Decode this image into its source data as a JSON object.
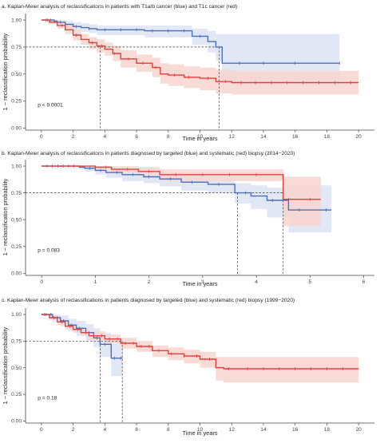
{
  "colors": {
    "blue": "#4a6fb7",
    "red": "#e0403d",
    "blue_band": "#dde3f3",
    "red_band": "#f8d5cf",
    "axis": "#444444",
    "ref_line": "#333333"
  },
  "chart_data": [
    {
      "type": "line",
      "subtype": "kaplan-meier",
      "title": "a. Kaplan-Meier analysis of reclassifications in patients with T1a/b cancer (blue) and T1c cancer (red)",
      "xlabel": "Time in years",
      "ylabel": "1 − reclassification probability",
      "xlim": [
        -1,
        21
      ],
      "ylim": [
        -0.02,
        1.06
      ],
      "xticks": [
        0,
        2,
        4,
        6,
        8,
        10,
        12,
        14,
        16,
        18,
        20
      ],
      "yticks": [
        "0.00",
        "0.25",
        "0.50",
        "0.75",
        "1.00"
      ],
      "pvalue_text": "p < 0.0001",
      "median_ref": {
        "y": 0.75,
        "x": [
          3.7,
          11.2
        ]
      },
      "series": [
        {
          "color": "blue",
          "step_x": [
            0,
            0.8,
            1.0,
            1.5,
            2.0,
            2.5,
            3.0,
            3.5,
            6.5,
            9.5,
            10.5,
            11.0,
            11.4,
            18.8
          ],
          "step_y": [
            1.0,
            0.99,
            0.98,
            0.96,
            0.94,
            0.93,
            0.92,
            0.91,
            0.9,
            0.85,
            0.8,
            0.75,
            0.6,
            0.6
          ],
          "band_upper": [
            1.0,
            1.0,
            1.0,
            0.99,
            0.98,
            0.97,
            0.96,
            0.95,
            0.95,
            0.92,
            0.9,
            0.87,
            0.87,
            0.87
          ],
          "band_lower": [
            1.0,
            0.97,
            0.95,
            0.92,
            0.9,
            0.89,
            0.88,
            0.86,
            0.84,
            0.77,
            0.7,
            0.62,
            0.41,
            0.41
          ],
          "censor_x": [
            0.3,
            0.6,
            1.2,
            2.2,
            3.0,
            4.0,
            5.0,
            6.0,
            7.0,
            8.0,
            9.0,
            10.0,
            12.5,
            14.0,
            16.0,
            18.8
          ]
        },
        {
          "color": "red",
          "step_x": [
            0,
            0.5,
            1.0,
            1.5,
            2.0,
            2.5,
            3.0,
            3.5,
            4.0,
            4.5,
            5.0,
            6.0,
            7.0,
            7.5,
            8.0,
            9.0,
            10.0,
            11.0,
            12.0,
            20.0
          ],
          "step_y": [
            1.0,
            0.98,
            0.95,
            0.91,
            0.86,
            0.82,
            0.79,
            0.76,
            0.73,
            0.69,
            0.64,
            0.6,
            0.56,
            0.5,
            0.49,
            0.47,
            0.46,
            0.43,
            0.42,
            0.42
          ],
          "band_upper": [
            1.0,
            1.0,
            0.98,
            0.95,
            0.91,
            0.87,
            0.84,
            0.82,
            0.79,
            0.76,
            0.72,
            0.68,
            0.65,
            0.6,
            0.59,
            0.57,
            0.56,
            0.54,
            0.53,
            0.53
          ],
          "band_lower": [
            1.0,
            0.96,
            0.92,
            0.87,
            0.81,
            0.77,
            0.73,
            0.7,
            0.67,
            0.62,
            0.56,
            0.52,
            0.47,
            0.41,
            0.39,
            0.37,
            0.35,
            0.32,
            0.31,
            0.31
          ],
          "censor_x": [
            0.4,
            1.3,
            2.2,
            3.2,
            3.8,
            4.6,
            5.5,
            6.4,
            7.2,
            8.4,
            9.3,
            10.5,
            11.6,
            12.6,
            13.5,
            14.5,
            15.5,
            16.5,
            17.5,
            18.5,
            19.5
          ]
        }
      ]
    },
    {
      "type": "line",
      "subtype": "kaplan-meier",
      "title": "b. Kaplan-Meier analysis of reclassifications in patients diagnosed by targeted (blue) and systematic (red) biopsy (2014−2020)",
      "xlabel": "Time in years",
      "ylabel": "1 − reclassification probability",
      "xlim": [
        -0.3,
        6.2
      ],
      "ylim": [
        -0.02,
        1.06
      ],
      "xticks": [
        0,
        1,
        2,
        3,
        4,
        5,
        6
      ],
      "yticks": [
        "0.00",
        "0.25",
        "0.50",
        "0.75",
        "1.00"
      ],
      "pvalue_text": "p = 0.083",
      "median_ref": {
        "y": 0.75,
        "x": [
          3.65,
          4.5
        ]
      },
      "series": [
        {
          "color": "blue",
          "step_x": [
            0,
            0.7,
            0.8,
            1.0,
            1.2,
            1.5,
            1.9,
            2.2,
            2.6,
            3.1,
            3.6,
            3.9,
            4.2,
            4.6,
            5.4
          ],
          "step_y": [
            1.0,
            0.99,
            0.98,
            0.96,
            0.94,
            0.92,
            0.9,
            0.88,
            0.85,
            0.83,
            0.75,
            0.72,
            0.68,
            0.59,
            0.59
          ],
          "band_upper": [
            1.0,
            1.0,
            1.0,
            0.99,
            0.98,
            0.97,
            0.95,
            0.94,
            0.92,
            0.9,
            0.84,
            0.82,
            0.8,
            0.82,
            0.82
          ],
          "band_lower": [
            1.0,
            0.97,
            0.95,
            0.92,
            0.89,
            0.86,
            0.84,
            0.81,
            0.77,
            0.75,
            0.65,
            0.6,
            0.52,
            0.38,
            0.38
          ],
          "censor_x": [
            0.1,
            0.2,
            0.3,
            0.4,
            0.5,
            0.9,
            1.1,
            1.4,
            1.7,
            2.0,
            2.4,
            2.8,
            3.3,
            3.8,
            4.3,
            4.8,
            5.3
          ]
        },
        {
          "color": "red",
          "step_x": [
            0,
            1.0,
            1.3,
            1.8,
            2.2,
            4.5,
            5.2
          ],
          "step_y": [
            1.0,
            0.99,
            0.97,
            0.95,
            0.92,
            0.69,
            0.69
          ],
          "band_upper": [
            1.0,
            1.0,
            1.0,
            0.99,
            0.97,
            0.9,
            0.9
          ],
          "band_lower": [
            1.0,
            0.97,
            0.94,
            0.91,
            0.86,
            0.44,
            0.44
          ],
          "censor_x": [
            0.6,
            1.2,
            1.6,
            2.0,
            2.5,
            3.0,
            3.5,
            4.0,
            4.6,
            5.0
          ]
        }
      ]
    },
    {
      "type": "line",
      "subtype": "kaplan-meier",
      "title": "c. Kaplan-Meier analysis of reclassifications in patients diagnosed by targeted (blue) and systematic (red) biopsy (1999−2020)",
      "xlabel": "Time in years",
      "ylabel": "1 − reclassification probability",
      "xlim": [
        -1,
        21
      ],
      "ylim": [
        -0.02,
        1.06
      ],
      "xticks": [
        0,
        2,
        4,
        6,
        8,
        10,
        12,
        14,
        16,
        18,
        20
      ],
      "yticks": [
        "0.00",
        "0.25",
        "0.50",
        "0.75",
        "1.00"
      ],
      "pvalue_text": "p = 0.18",
      "median_ref": {
        "y": 0.75,
        "x": [
          3.7,
          5.1
        ]
      },
      "series": [
        {
          "color": "blue",
          "step_x": [
            0,
            0.7,
            1.2,
            1.7,
            2.2,
            2.8,
            3.3,
            3.7,
            4.4,
            5.1
          ],
          "step_y": [
            1.0,
            0.97,
            0.94,
            0.9,
            0.87,
            0.83,
            0.78,
            0.72,
            0.59,
            0.59
          ],
          "band_upper": [
            1.0,
            1.0,
            0.99,
            0.96,
            0.94,
            0.91,
            0.87,
            0.83,
            0.76,
            0.76
          ],
          "band_lower": [
            1.0,
            0.93,
            0.89,
            0.84,
            0.8,
            0.75,
            0.69,
            0.6,
            0.42,
            0.42
          ],
          "censor_x": [
            0.3,
            0.6,
            1.0,
            1.4,
            1.9,
            2.4,
            3.0,
            3.5,
            4.0,
            4.6,
            5.0
          ]
        },
        {
          "color": "red",
          "step_x": [
            0,
            0.5,
            1.0,
            1.5,
            2.0,
            2.5,
            3.0,
            4.0,
            5.0,
            6.0,
            7.0,
            8.0,
            9.0,
            10.0,
            11.0,
            11.5,
            20.0
          ],
          "step_y": [
            1.0,
            0.97,
            0.93,
            0.89,
            0.86,
            0.83,
            0.8,
            0.77,
            0.73,
            0.7,
            0.66,
            0.63,
            0.61,
            0.58,
            0.5,
            0.49,
            0.49
          ],
          "band_upper": [
            1.0,
            0.99,
            0.96,
            0.92,
            0.89,
            0.86,
            0.84,
            0.81,
            0.78,
            0.75,
            0.71,
            0.69,
            0.67,
            0.65,
            0.6,
            0.6,
            0.6
          ],
          "band_lower": [
            1.0,
            0.95,
            0.9,
            0.86,
            0.83,
            0.8,
            0.76,
            0.73,
            0.68,
            0.65,
            0.6,
            0.57,
            0.54,
            0.5,
            0.38,
            0.36,
            0.36
          ],
          "censor_x": [
            0.2,
            0.8,
            1.3,
            1.8,
            2.3,
            2.8,
            3.3,
            3.8,
            4.3,
            4.8,
            5.3,
            5.8,
            6.3,
            6.8,
            7.4,
            8.2,
            9.0,
            9.8,
            10.6,
            11.8,
            13.0,
            14.0,
            15.0,
            16.0,
            17.0,
            18.0,
            19.0
          ]
        }
      ]
    }
  ]
}
